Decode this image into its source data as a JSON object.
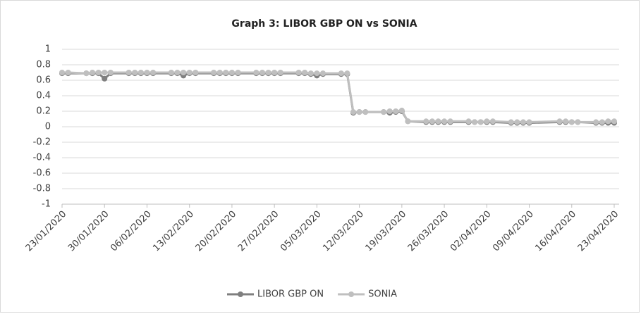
{
  "chart_data": {
    "type": "line",
    "title": "Graph 3: LIBOR GBP ON vs SONIA",
    "x": [
      "23/01/2020",
      "24/01/2020",
      "27/01/2020",
      "28/01/2020",
      "29/01/2020",
      "30/01/2020",
      "31/01/2020",
      "03/02/2020",
      "04/02/2020",
      "05/02/2020",
      "06/02/2020",
      "07/02/2020",
      "10/02/2020",
      "11/02/2020",
      "12/02/2020",
      "13/02/2020",
      "14/02/2020",
      "17/02/2020",
      "18/02/2020",
      "19/02/2020",
      "20/02/2020",
      "21/02/2020",
      "24/02/2020",
      "25/02/2020",
      "26/02/2020",
      "27/02/2020",
      "28/02/2020",
      "02/03/2020",
      "03/03/2020",
      "04/03/2020",
      "05/03/2020",
      "06/03/2020",
      "09/03/2020",
      "10/03/2020",
      "11/03/2020",
      "12/03/2020",
      "13/03/2020",
      "16/03/2020",
      "17/03/2020",
      "18/03/2020",
      "19/03/2020",
      "20/03/2020",
      "23/03/2020",
      "24/03/2020",
      "25/03/2020",
      "26/03/2020",
      "27/03/2020",
      "30/03/2020",
      "31/03/2020",
      "01/04/2020",
      "02/04/2020",
      "03/04/2020",
      "06/04/2020",
      "07/04/2020",
      "08/04/2020",
      "09/04/2020",
      "14/04/2020",
      "15/04/2020",
      "16/04/2020",
      "17/04/2020",
      "20/04/2020",
      "21/04/2020",
      "22/04/2020",
      "23/04/2020"
    ],
    "series": [
      {
        "name": "LIBOR GBP ON",
        "color": "#7f7f7f",
        "values": [
          0.69,
          0.69,
          0.69,
          0.69,
          0.69,
          0.62,
          0.69,
          0.69,
          0.69,
          0.69,
          0.69,
          0.69,
          0.69,
          0.69,
          0.66,
          0.69,
          0.69,
          0.69,
          0.69,
          0.69,
          0.69,
          0.69,
          0.69,
          0.69,
          0.69,
          0.69,
          0.69,
          0.69,
          0.69,
          0.68,
          0.66,
          0.68,
          0.68,
          0.68,
          0.18,
          0.19,
          0.19,
          0.19,
          0.18,
          0.19,
          0.2,
          0.07,
          0.06,
          0.06,
          0.06,
          0.06,
          0.06,
          0.06,
          0.06,
          0.06,
          0.06,
          0.06,
          0.05,
          0.05,
          0.05,
          0.05,
          0.06,
          0.06,
          0.06,
          0.06,
          0.05,
          0.05,
          0.05,
          0.05
        ]
      },
      {
        "name": "SONIA",
        "color": "#bfbfbf",
        "values": [
          0.7,
          0.7,
          0.69,
          0.7,
          0.7,
          0.7,
          0.7,
          0.7,
          0.7,
          0.7,
          0.7,
          0.7,
          0.7,
          0.7,
          0.7,
          0.7,
          0.7,
          0.7,
          0.7,
          0.7,
          0.7,
          0.7,
          0.7,
          0.7,
          0.7,
          0.7,
          0.7,
          0.7,
          0.7,
          0.69,
          0.69,
          0.69,
          0.69,
          0.69,
          0.19,
          0.19,
          0.19,
          0.19,
          0.2,
          0.2,
          0.21,
          0.07,
          0.07,
          0.07,
          0.07,
          0.07,
          0.07,
          0.07,
          0.06,
          0.06,
          0.07,
          0.07,
          0.06,
          0.06,
          0.06,
          0.06,
          0.07,
          0.07,
          0.06,
          0.06,
          0.06,
          0.06,
          0.07,
          0.07
        ]
      }
    ],
    "xlim": [
      "23/01/2020",
      "23/04/2020"
    ],
    "xticks": [
      "23/01/2020",
      "30/01/2020",
      "06/02/2020",
      "13/02/2020",
      "20/02/2020",
      "27/02/2020",
      "05/03/2020",
      "12/03/2020",
      "19/03/2020",
      "26/03/2020",
      "02/04/2020",
      "09/04/2020",
      "16/04/2020",
      "23/04/2020"
    ],
    "ylim": [
      -1,
      1
    ],
    "yticks": [
      -1,
      -0.8,
      -0.6,
      -0.4,
      -0.2,
      0,
      0.2,
      0.4,
      0.6,
      0.8,
      1
    ],
    "grid": true,
    "legend": "bottom"
  }
}
